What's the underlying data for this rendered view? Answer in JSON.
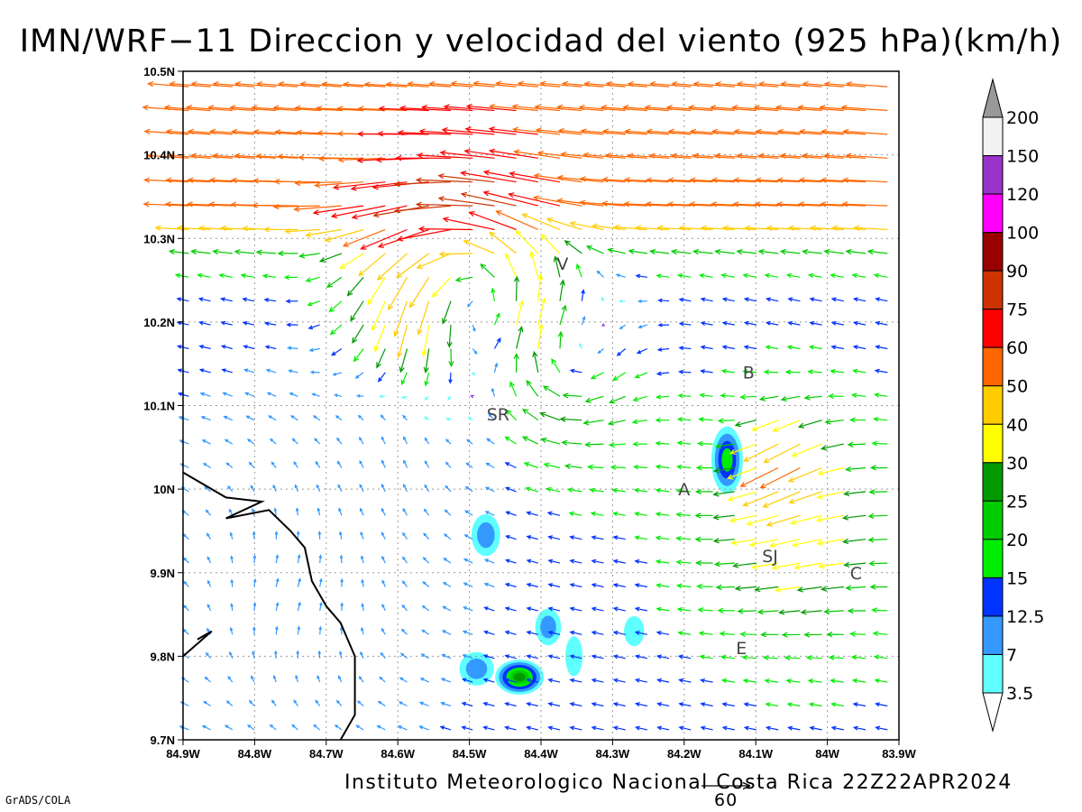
{
  "title": "IMN/WRF−11 Direccion y velocidad del viento (925 hPa)(km/h)",
  "footer": "Instituto Meteorologico Nacional Costa Rica 22Z22APR2024",
  "credit": "GrADS/COLA",
  "reference_vector": {
    "value": "60"
  },
  "map": {
    "lon_range": [
      -84.9,
      -83.9
    ],
    "lat_range": [
      9.7,
      10.5
    ],
    "lon_ticks": [
      {
        "value": -84.9,
        "label": "84.9W"
      },
      {
        "value": -84.8,
        "label": "84.8W"
      },
      {
        "value": -84.7,
        "label": "84.7W"
      },
      {
        "value": -84.6,
        "label": "84.6W"
      },
      {
        "value": -84.5,
        "label": "84.5W"
      },
      {
        "value": -84.4,
        "label": "84.4W"
      },
      {
        "value": -84.3,
        "label": "84.3W"
      },
      {
        "value": -84.2,
        "label": "84.2W"
      },
      {
        "value": -84.1,
        "label": "84.1W"
      },
      {
        "value": -84.0,
        "label": "84W"
      },
      {
        "value": -83.9,
        "label": "83.9W"
      }
    ],
    "lat_ticks": [
      {
        "value": 9.7,
        "label": "9.7N"
      },
      {
        "value": 9.8,
        "label": "9.8N"
      },
      {
        "value": 9.9,
        "label": "9.9N"
      },
      {
        "value": 10.0,
        "label": "10N"
      },
      {
        "value": 10.1,
        "label": "10.1N"
      },
      {
        "value": 10.2,
        "label": "10.2N"
      },
      {
        "value": 10.3,
        "label": "10.3N"
      },
      {
        "value": 10.4,
        "label": "10.4N"
      },
      {
        "value": 10.5,
        "label": "10.5N"
      }
    ],
    "grid": true,
    "places": [
      {
        "label": "V",
        "lon": -84.37,
        "lat": 10.27
      },
      {
        "label": "B",
        "lon": -84.11,
        "lat": 10.14
      },
      {
        "label": "SR",
        "lon": -84.46,
        "lat": 10.09
      },
      {
        "label": "A",
        "lon": -84.2,
        "lat": 10.0
      },
      {
        "label": "SJ",
        "lon": -84.08,
        "lat": 9.92
      },
      {
        "label": "C",
        "lon": -83.96,
        "lat": 9.9
      },
      {
        "label": "E",
        "lon": -84.12,
        "lat": 9.81
      }
    ],
    "coastline": [
      [
        -84.9,
        10.02
      ],
      [
        -84.84,
        9.99
      ],
      [
        -84.79,
        9.985
      ],
      [
        -84.84,
        9.965
      ],
      [
        -84.78,
        9.975
      ],
      [
        -84.75,
        9.95
      ],
      [
        -84.73,
        9.93
      ],
      [
        -84.72,
        9.89
      ],
      [
        -84.7,
        9.86
      ],
      [
        -84.68,
        9.84
      ],
      [
        -84.66,
        9.8
      ],
      [
        -84.66,
        9.73
      ],
      [
        -84.68,
        9.7
      ]
    ],
    "coastline_south": [
      [
        -84.9,
        9.8
      ],
      [
        -84.86,
        9.83
      ],
      [
        -84.88,
        9.82
      ]
    ],
    "wind_field": {
      "features": [
        {
          "type": "uniform",
          "u": -14,
          "v": 3,
          "weight": 1
        },
        {
          "type": "stream",
          "lat": 10.45,
          "u": -42,
          "v": 1,
          "width": 0.08
        },
        {
          "type": "stream",
          "lat": 10.34,
          "u": -35,
          "v": -1,
          "width": 0.05
        },
        {
          "type": "vortex",
          "lon": -84.5,
          "lat": 10.25,
          "strength": 28,
          "radius": 0.12
        },
        {
          "type": "jet",
          "lon": -84.57,
          "lat": 10.18,
          "u": -12,
          "v": -32,
          "radius": 0.1
        },
        {
          "type": "vortex",
          "lon": -84.36,
          "lat": 10.15,
          "strength": -16,
          "radius": 0.09
        },
        {
          "type": "calm",
          "lon": -84.74,
          "lat": 9.88,
          "u": 3,
          "v": 10,
          "radius": 0.18
        },
        {
          "type": "calm",
          "lon": -84.6,
          "lat": 10.03,
          "u": -4,
          "v": 9,
          "radius": 0.12
        },
        {
          "type": "jet",
          "lon": -84.03,
          "lat": 9.95,
          "u": -22,
          "v": -10,
          "radius": 0.12
        },
        {
          "type": "jet",
          "lon": -84.05,
          "lat": 10.04,
          "u": -22,
          "v": -23,
          "radius": 0.06
        }
      ]
    },
    "shading_blobs": [
      {
        "lon": -84.14,
        "lat": 10.035,
        "rx": 0.022,
        "ry": 0.04,
        "value": 15
      },
      {
        "lon": -84.477,
        "lat": 9.945,
        "rx": 0.02,
        "ry": 0.025,
        "value": 7
      },
      {
        "lon": -84.39,
        "lat": 9.835,
        "rx": 0.018,
        "ry": 0.022,
        "value": 7
      },
      {
        "lon": -84.354,
        "lat": 9.8,
        "rx": 0.012,
        "ry": 0.024,
        "value": 3.5
      },
      {
        "lon": -84.27,
        "lat": 9.83,
        "rx": 0.014,
        "ry": 0.018,
        "value": 3.5
      },
      {
        "lon": -84.49,
        "lat": 9.785,
        "rx": 0.024,
        "ry": 0.02,
        "value": 7
      },
      {
        "lon": -84.43,
        "lat": 9.775,
        "rx": 0.034,
        "ry": 0.021,
        "value": 25
      }
    ]
  },
  "colorbar": {
    "levels": [
      "3.5",
      "7",
      "12.5",
      "15",
      "20",
      "25",
      "30",
      "40",
      "50",
      "60",
      "75",
      "90",
      "100",
      "120",
      "150",
      "200"
    ],
    "colors": [
      "#5fffff",
      "#3399ff",
      "#0033ff",
      "#00ee00",
      "#00cc00",
      "#009900",
      "#ffff00",
      "#ffcc00",
      "#ff6600",
      "#ff0000",
      "#cc3300",
      "#990000",
      "#ff00ff",
      "#9933cc",
      "#f2f2f2",
      "#999999"
    ]
  }
}
